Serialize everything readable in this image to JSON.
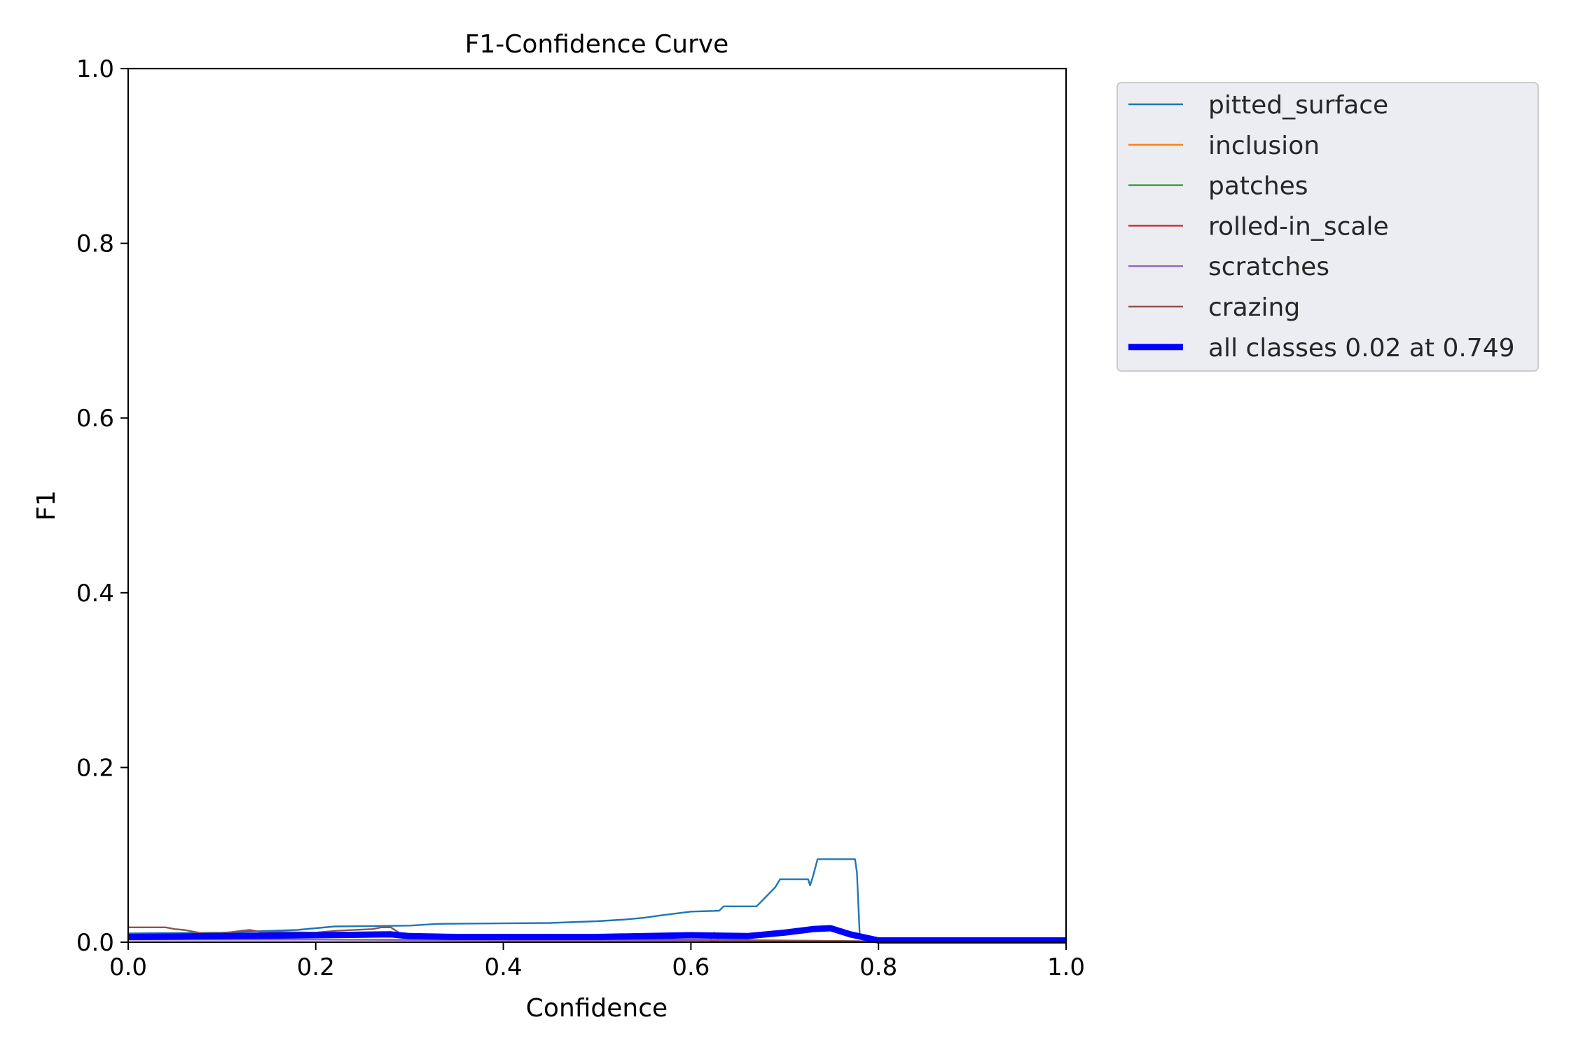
{
  "chart_data": {
    "type": "line",
    "title": "F1-Confidence Curve",
    "xlabel": "Confidence",
    "ylabel": "F1",
    "xlim": [
      0.0,
      1.0
    ],
    "ylim": [
      0.0,
      1.0
    ],
    "xticks": [
      "0.0",
      "0.2",
      "0.4",
      "0.6",
      "0.8",
      "1.0"
    ],
    "yticks": [
      "0.0",
      "0.2",
      "0.4",
      "0.6",
      "0.8",
      "1.0"
    ],
    "grid": false,
    "legend_position": "outside-right-top",
    "series": [
      {
        "name": "pitted_surface",
        "color": "#1f77b4",
        "x": [
          0.0,
          0.1,
          0.15,
          0.18,
          0.2,
          0.22,
          0.3,
          0.33,
          0.45,
          0.5,
          0.53,
          0.55,
          0.57,
          0.6,
          0.63,
          0.635,
          0.67,
          0.68,
          0.69,
          0.695,
          0.7,
          0.725,
          0.727,
          0.73,
          0.735,
          0.74,
          0.77,
          0.775,
          0.777,
          0.78,
          0.8,
          1.0
        ],
        "y": [
          0.01,
          0.011,
          0.013,
          0.014,
          0.016,
          0.018,
          0.019,
          0.021,
          0.022,
          0.024,
          0.026,
          0.028,
          0.031,
          0.035,
          0.036,
          0.041,
          0.041,
          0.052,
          0.063,
          0.072,
          0.072,
          0.072,
          0.065,
          0.075,
          0.095,
          0.095,
          0.095,
          0.095,
          0.08,
          0.008,
          0.002,
          0.002
        ]
      },
      {
        "name": "inclusion",
        "color": "#ff7f0e",
        "x": [
          0.0,
          0.1,
          0.2,
          0.3,
          0.4,
          0.5,
          0.6,
          0.7,
          0.8,
          1.0
        ],
        "y": [
          0.004,
          0.004,
          0.003,
          0.003,
          0.002,
          0.002,
          0.002,
          0.001,
          0.001,
          0.001
        ]
      },
      {
        "name": "patches",
        "color": "#2ca02c",
        "x": [
          0.0,
          0.2,
          0.4,
          0.6,
          0.8,
          1.0
        ],
        "y": [
          0.004,
          0.003,
          0.003,
          0.002,
          0.001,
          0.001
        ]
      },
      {
        "name": "rolled-in_scale",
        "color": "#d62728",
        "x": [
          0.0,
          0.1,
          0.15,
          0.2,
          0.22,
          0.25,
          0.3,
          0.35,
          0.5,
          0.8,
          1.0
        ],
        "y": [
          0.006,
          0.008,
          0.009,
          0.009,
          0.011,
          0.007,
          0.006,
          0.005,
          0.003,
          0.001,
          0.001
        ]
      },
      {
        "name": "scratches",
        "color": "#9467bd",
        "x": [
          0.0,
          0.2,
          0.4,
          0.6,
          0.62,
          0.625,
          0.63,
          0.8,
          1.0
        ],
        "y": [
          0.003,
          0.003,
          0.002,
          0.002,
          0.002,
          0.011,
          0.002,
          0.001,
          0.001
        ]
      },
      {
        "name": "crazing",
        "color": "#8c564b",
        "x": [
          0.0,
          0.04,
          0.05,
          0.06,
          0.07,
          0.08,
          0.1,
          0.12,
          0.13,
          0.14,
          0.2,
          0.22,
          0.26,
          0.27,
          0.28,
          0.29,
          0.3,
          0.32,
          0.4,
          0.6,
          0.8,
          1.0
        ],
        "y": [
          0.017,
          0.017,
          0.015,
          0.014,
          0.012,
          0.01,
          0.01,
          0.013,
          0.014,
          0.012,
          0.011,
          0.013,
          0.015,
          0.017,
          0.017,
          0.01,
          0.006,
          0.005,
          0.004,
          0.003,
          0.001,
          0.001
        ]
      },
      {
        "name": "all classes 0.02 at 0.749",
        "color": "#0000ff",
        "bold": true,
        "x": [
          0.0,
          0.1,
          0.2,
          0.28,
          0.3,
          0.35,
          0.5,
          0.6,
          0.66,
          0.7,
          0.73,
          0.749,
          0.77,
          0.8,
          1.0
        ],
        "y": [
          0.006,
          0.007,
          0.008,
          0.009,
          0.007,
          0.006,
          0.006,
          0.008,
          0.007,
          0.011,
          0.015,
          0.016,
          0.009,
          0.002,
          0.002
        ]
      }
    ]
  }
}
